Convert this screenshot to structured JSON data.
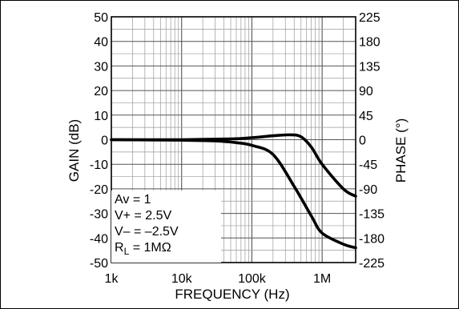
{
  "chart_data": {
    "type": "line",
    "xlabel": "FREQUENCY (Hz)",
    "ylabel": "GAIN (dB)",
    "y2label": "PHASE (°)",
    "xscale": "log",
    "xlim": [
      1000,
      3000000
    ],
    "ylim": [
      -50,
      50
    ],
    "y2lim": [
      -225,
      225
    ],
    "grid": true,
    "x_ticks": [
      {
        "value": 1000,
        "label": "1k"
      },
      {
        "value": 10000,
        "label": "10k"
      },
      {
        "value": 100000,
        "label": "100k"
      },
      {
        "value": 1000000,
        "label": "1M"
      }
    ],
    "y_ticks": [
      {
        "value": 50,
        "label": "50"
      },
      {
        "value": 40,
        "label": "40"
      },
      {
        "value": 30,
        "label": "30"
      },
      {
        "value": 20,
        "label": "20"
      },
      {
        "value": 10,
        "label": "10"
      },
      {
        "value": 0,
        "label": "0"
      },
      {
        "value": -10,
        "label": "-10"
      },
      {
        "value": -20,
        "label": "-20"
      },
      {
        "value": -30,
        "label": "-30"
      },
      {
        "value": -40,
        "label": "-40"
      },
      {
        "value": -50,
        "label": "-50"
      }
    ],
    "y2_ticks": [
      {
        "value": 225,
        "label": "225"
      },
      {
        "value": 180,
        "label": "180"
      },
      {
        "value": 135,
        "label": "135"
      },
      {
        "value": 90,
        "label": "90"
      },
      {
        "value": 45,
        "label": "45"
      },
      {
        "value": 0,
        "label": "0"
      },
      {
        "value": -45,
        "label": "-45"
      },
      {
        "value": -90,
        "label": "-90"
      },
      {
        "value": -135,
        "label": "-135"
      },
      {
        "value": -180,
        "label": "-180"
      },
      {
        "value": -225,
        "label": "-225"
      }
    ],
    "series": [
      {
        "x": [
          1000,
          10000,
          50000,
          100000,
          200000,
          350000,
          500000,
          700000,
          1000000,
          2000000,
          3000000
        ],
        "y": [
          0,
          0,
          0.3,
          0.8,
          1.6,
          2.0,
          1.2,
          -3,
          -10,
          -20,
          -23
        ]
      },
      {
        "x": [
          1000,
          10000,
          30000,
          60000,
          100000,
          200000,
          400000,
          700000,
          1000000,
          2000000,
          3000000
        ],
        "y": [
          0,
          -0.2,
          -0.5,
          -1.2,
          -2.3,
          -6,
          -19,
          -31,
          -38,
          -42.5,
          -44
        ]
      }
    ],
    "annotations": [
      "Av = 1",
      "V+ = 2.5V",
      "V– = –2.5V",
      "R",
      "L",
      " = 1MΩ"
    ]
  }
}
